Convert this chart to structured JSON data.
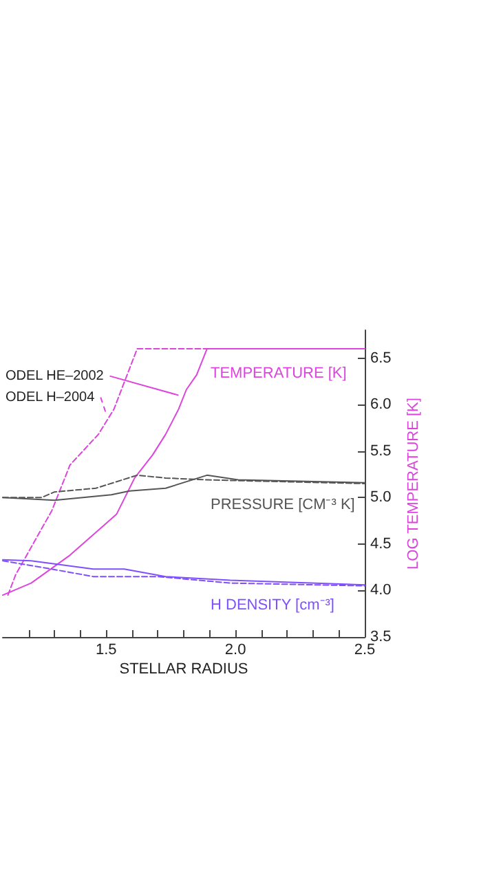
{
  "chart_data": {
    "type": "line",
    "xlabel": "STELLAR RADIUS",
    "ylabel": "LOG TEMPERATURE [K]",
    "xlim": [
      1.1,
      2.5
    ],
    "ylim": [
      3.5,
      6.8
    ],
    "xticks": [
      {
        "value": 1.2,
        "label": null
      },
      {
        "value": 1.3,
        "label": null
      },
      {
        "value": 1.4,
        "label": null
      },
      {
        "value": 1.5,
        "label": "1.5"
      },
      {
        "value": 1.6,
        "label": null
      },
      {
        "value": 1.7,
        "label": null
      },
      {
        "value": 1.8,
        "label": null
      },
      {
        "value": 1.9,
        "label": null
      },
      {
        "value": 2.0,
        "label": "2.0"
      },
      {
        "value": 2.1,
        "label": null
      },
      {
        "value": 2.2,
        "label": null
      },
      {
        "value": 2.3,
        "label": null
      },
      {
        "value": 2.4,
        "label": null
      },
      {
        "value": 2.5,
        "label": "2.5"
      }
    ],
    "yticks": [
      3.5,
      {
        "value": 4.0,
        "label": "4.0"
      },
      4.5,
      {
        "value": 5.0,
        "label": "5.0"
      },
      5.5,
      {
        "value": 6.0,
        "label": "6.0"
      },
      6.5
    ],
    "grid": false,
    "legend": false,
    "marker": "none",
    "series": [
      {
        "name": "TEMPERATURE [K]",
        "color": "#dd44dd",
        "line_style": "solid",
        "x": [
          1.1,
          1.21,
          1.36,
          1.54,
          1.61,
          1.68,
          1.73,
          1.78,
          1.81,
          1.85,
          1.89,
          2.5
        ],
        "values": [
          3.95,
          4.08,
          4.38,
          4.82,
          5.21,
          5.46,
          5.68,
          5.95,
          6.16,
          6.32,
          6.6,
          6.6
        ]
      },
      {
        "color": "#dd44dd",
        "line_style": "dashed",
        "x": [
          1.12,
          1.15,
          1.29,
          1.36,
          1.47,
          1.53,
          1.57,
          1.62,
          2.5
        ],
        "values": [
          3.95,
          4.17,
          4.86,
          5.35,
          5.68,
          5.95,
          6.24,
          6.6,
          6.6
        ]
      },
      {
        "name": "PRESSURE [CM⁻³ K]",
        "color": "#555555",
        "line_style": "solid",
        "x": [
          1.1,
          1.3,
          1.52,
          1.59,
          1.73,
          1.89,
          2.01,
          2.5
        ],
        "values": [
          5.0,
          4.97,
          5.03,
          5.07,
          5.1,
          5.24,
          5.19,
          5.16
        ]
      },
      {
        "color": "#555555",
        "line_style": "dashed",
        "x": [
          1.1,
          1.25,
          1.3,
          1.46,
          1.62,
          1.73,
          1.89,
          2.5
        ],
        "values": [
          5.0,
          5.0,
          5.06,
          5.1,
          5.24,
          5.21,
          5.19,
          5.15
        ]
      },
      {
        "name": "H DENSITY [cm⁻³]",
        "color": "#7f4fff",
        "line_style": "solid",
        "x": [
          1.1,
          1.21,
          1.45,
          1.57,
          1.73,
          1.98,
          2.5
        ],
        "values": [
          4.33,
          4.32,
          4.23,
          4.23,
          4.15,
          4.11,
          4.06
        ]
      },
      {
        "color": "#7f4fff",
        "line_style": "dashed",
        "x": [
          1.1,
          1.27,
          1.45,
          1.7,
          1.98,
          2.5
        ],
        "values": [
          4.32,
          4.24,
          4.15,
          4.15,
          4.08,
          4.05
        ]
      }
    ],
    "annotations": [
      {
        "text": "ODEL HE–2002",
        "x": 1.78,
        "y": 6.1
      },
      {
        "text": "ODEL H–2004",
        "x": 1.5,
        "y": 5.9
      }
    ]
  }
}
